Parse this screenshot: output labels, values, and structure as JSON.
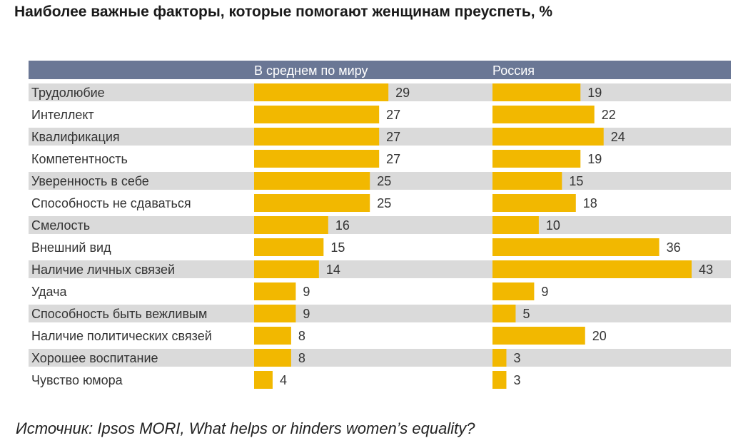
{
  "title": "Наиболее важные факторы, которые помогают женщинам преуспеть, %",
  "source": "Источник: Ipsos MORI, What helps or hinders women’s equality?",
  "colors": {
    "bar": "#F2B800",
    "stripe": "#DADADA",
    "header": "#6A7795",
    "text": "#333333"
  },
  "chart_data": {
    "type": "bar",
    "orientation": "horizontal",
    "categories": [
      "Трудолюбие",
      "Интеллект",
      "Квалификация",
      "Компетентность",
      "Уверенность в себе",
      "Способность не сдаваться",
      "Смелость",
      "Внешний вид",
      "Наличие личных связей",
      "Удача",
      "Способность быть вежливым",
      "Наличие политических связей",
      "Хорошее воспитание",
      "Чувство юмора"
    ],
    "series": [
      {
        "name": "В среднем по миру",
        "values": [
          29,
          27,
          27,
          27,
          25,
          25,
          16,
          15,
          14,
          9,
          9,
          8,
          8,
          4
        ]
      },
      {
        "name": "Россия",
        "values": [
          19,
          22,
          24,
          19,
          15,
          18,
          10,
          36,
          43,
          9,
          5,
          20,
          3,
          3
        ]
      }
    ],
    "xlim": [
      0,
      45
    ],
    "data_labels": true,
    "grid": false,
    "alternating_row_stripes": true
  }
}
